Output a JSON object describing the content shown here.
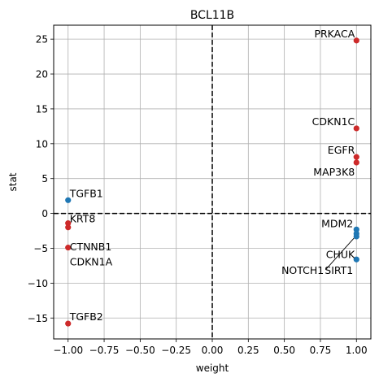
{
  "chart_data": {
    "type": "scatter",
    "title": "BCL11B",
    "xlabel": "weight",
    "ylabel": "stat",
    "xlim": [
      -1.1,
      1.1
    ],
    "ylim": [
      -18,
      27
    ],
    "x_ticks": [
      -1.0,
      -0.75,
      -0.5,
      -0.25,
      0.0,
      0.25,
      0.5,
      0.75,
      1.0
    ],
    "x_tick_labels": [
      "−1.00",
      "−0.75",
      "−0.50",
      "−0.25",
      "0.00",
      "0.25",
      "0.50",
      "0.75",
      "1.00"
    ],
    "y_ticks": [
      -15,
      -10,
      -5,
      0,
      5,
      10,
      15,
      20,
      25
    ],
    "y_tick_labels": [
      "−15",
      "−10",
      "−5",
      "0",
      "5",
      "10",
      "15",
      "20",
      "25"
    ],
    "grid": true,
    "reference_lines": {
      "x": 0,
      "y": 0,
      "style": "dashed",
      "color": "#000000"
    },
    "colors": {
      "red": "#cd2a2a",
      "blue": "#1f77b4"
    },
    "points": [
      {
        "label": "PRKACA",
        "x": 1.0,
        "y": 24.8,
        "color": "red",
        "anchor": "end",
        "dx": -2,
        "dy": -4
      },
      {
        "label": "CDKN1C",
        "x": 1.0,
        "y": 12.2,
        "color": "red",
        "anchor": "end",
        "dx": -2,
        "dy": -4
      },
      {
        "label": "EGFR",
        "x": 1.0,
        "y": 8.1,
        "color": "red",
        "anchor": "end",
        "dx": -2,
        "dy": -4
      },
      {
        "label": "MAP3K8",
        "x": 1.0,
        "y": 7.3,
        "color": "red",
        "anchor": "end",
        "dx": -2,
        "dy": 16
      },
      {
        "label": "MDM2",
        "x": 1.0,
        "y": -2.3,
        "color": "blue",
        "anchor": "end",
        "dx": -4,
        "dy": -3
      },
      {
        "label": "CHUK",
        "x": 1.0,
        "y": -2.9,
        "color": "blue",
        "anchor": "end",
        "dx": -2,
        "dy": 30
      },
      {
        "label": "NOTCH1",
        "x": 1.0,
        "y": -3.3,
        "color": "blue",
        "anchor": "end",
        "dx": -40,
        "dy": 46,
        "leader": true
      },
      {
        "label": "SIRT1",
        "x": 1.0,
        "y": -6.6,
        "color": "blue",
        "anchor": "end",
        "dx": -4,
        "dy": 18
      },
      {
        "label": "TGFB1",
        "x": -1.0,
        "y": 1.9,
        "color": "blue",
        "anchor": "start",
        "dx": 2,
        "dy": -4
      },
      {
        "label": "KRT8",
        "x": -1.0,
        "y": -1.4,
        "color": "red",
        "anchor": "start",
        "dx": 2,
        "dy": -1
      },
      {
        "label": "CTNNB1",
        "x": -1.0,
        "y": -2.0,
        "color": "red",
        "anchor": "start",
        "dx": 2,
        "dy": 28
      },
      {
        "label": "CDKN1A",
        "x": -1.0,
        "y": -4.9,
        "color": "red",
        "anchor": "start",
        "dx": 2,
        "dy": 22
      },
      {
        "label": "TGFB2",
        "x": -1.0,
        "y": -15.8,
        "color": "red",
        "anchor": "start",
        "dx": 2,
        "dy": -4
      }
    ]
  }
}
